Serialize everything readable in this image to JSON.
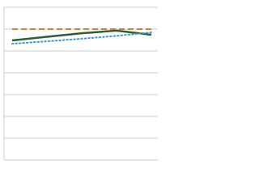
{
  "chart_data": {
    "type": "line",
    "categories": [
      null,
      null,
      null,
      null,
      null
    ],
    "series": [
      {
        "color": "#d9822b",
        "style": "dashed",
        "values": [
          60,
          60,
          60,
          60,
          60
        ]
      },
      {
        "color": "#2e5e3a",
        "style": "solid",
        "values": [
          54.8,
          56.5,
          58.1,
          59.3,
          57.4
        ]
      },
      {
        "color": "#3a9ad9",
        "style": "dotted",
        "values": [
          53.3,
          54.4,
          55.6,
          56.9,
          58.5
        ]
      }
    ],
    "ylim": [
      0,
      70
    ],
    "yticks": [
      0,
      10,
      20,
      30,
      40,
      50,
      60,
      70
    ],
    "grid": true
  }
}
